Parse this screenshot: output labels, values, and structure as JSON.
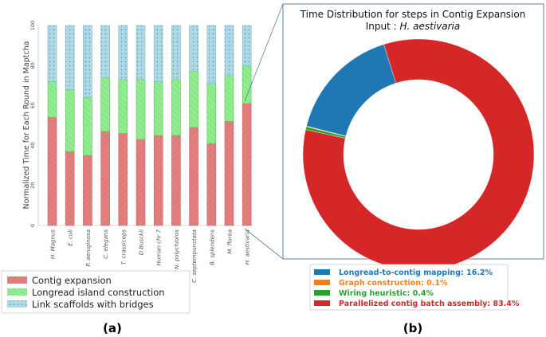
{
  "chart_data": [
    {
      "type": "bar",
      "stacked": true,
      "ylabel": "Normalized Time for Each Round in Maptcha",
      "ylim": [
        0,
        100
      ],
      "yticks": [
        0,
        20,
        40,
        60,
        80,
        100
      ],
      "categories": [
        "H. Magnus",
        "E. coli",
        "P. aeruginosa",
        "C. elegans",
        "T. crassiceps",
        "D.Busckii",
        "Human chr 7",
        "N. polychloros",
        "C. septempunctata",
        "B. splendens",
        "M. florea",
        "H. aestivaria"
      ],
      "series": [
        {
          "name": "Contig expansion",
          "color": "#e47f7f",
          "values": [
            54,
            37,
            35,
            47,
            46,
            43,
            45,
            45,
            49,
            41,
            52,
            61
          ]
        },
        {
          "name": "Longread island construction",
          "color": "#90ee90",
          "values": [
            18,
            31,
            29,
            27,
            27,
            30,
            27,
            28,
            28,
            30,
            23,
            19
          ]
        },
        {
          "name": "Link scaffolds with bridges",
          "color": "#add8e6",
          "values": [
            28,
            32,
            36,
            26,
            27,
            27,
            28,
            27,
            23,
            29,
            25,
            20
          ]
        }
      ],
      "legend": [
        "Contig expansion",
        "Longread island construction",
        "Link scaffolds with bridges"
      ],
      "caption": "(a)"
    },
    {
      "type": "pie",
      "donut": true,
      "title": "Time Distribution for steps in Contig Expansion",
      "subtitle_prefix": "Input : ",
      "subtitle_italic": "H. aestivaria",
      "slices": [
        {
          "label": "Longread-to-contig mapping: 16.2%",
          "value": 16.2,
          "color": "#1f77b4"
        },
        {
          "label": "Graph construction: 0.1%",
          "value": 0.1,
          "color": "#ff7f0e"
        },
        {
          "label": "Wiring heuristic: 0.4%",
          "value": 0.4,
          "color": "#2ca02c"
        },
        {
          "label": "Parallelized contig batch assembly: 83.4%",
          "value": 83.4,
          "color": "#d62728"
        }
      ],
      "caption": "(b)"
    }
  ]
}
